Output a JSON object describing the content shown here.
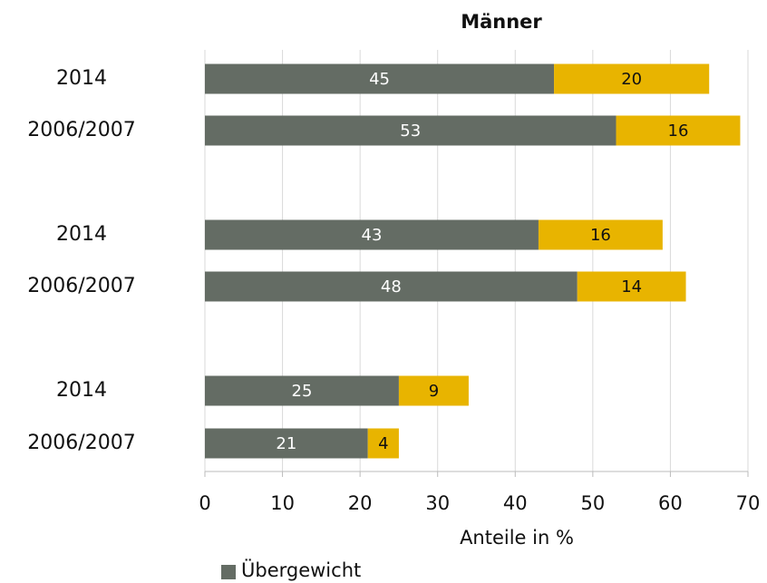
{
  "chart_data": {
    "type": "stacked-barh",
    "title": "Männer",
    "categories": [
      "2014",
      "2006/2007",
      "2014",
      "2006/2007",
      "2014",
      "2006/2007"
    ],
    "series": [
      {
        "name": "Übergewicht",
        "color": "#646c64",
        "values": [
          45,
          53,
          43,
          48,
          25,
          21
        ]
      },
      {
        "color": "#e8b400",
        "values": [
          20,
          16,
          16,
          14,
          9,
          4
        ]
      }
    ],
    "xlabel": "Anteile in %",
    "xlim": [
      0,
      70
    ],
    "xticks": [
      0,
      10,
      20,
      30,
      40,
      50,
      60,
      70
    ],
    "grid": true
  }
}
